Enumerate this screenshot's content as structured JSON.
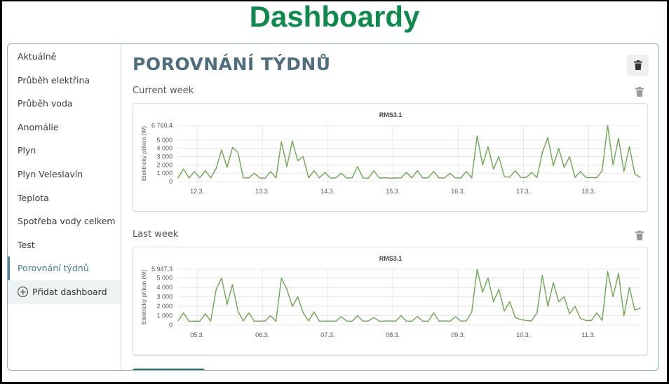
{
  "app_title": "Dashboardy",
  "sidebar": {
    "items": [
      {
        "label": "Aktuálně"
      },
      {
        "label": "Průběh elektřina"
      },
      {
        "label": "Průběh voda"
      },
      {
        "label": "Anomálie"
      },
      {
        "label": "Plyn"
      },
      {
        "label": "Plyn Veleslavín"
      },
      {
        "label": "Teplota"
      },
      {
        "label": "Spotřeba vody celkem"
      },
      {
        "label": "Test"
      },
      {
        "label": "Porovnání týdnů",
        "active": true
      }
    ],
    "add_label": "Přidat dashboard"
  },
  "main": {
    "title": "POROVNÁNÍ TÝDNŮ",
    "delete_icon": "trash-icon",
    "sections": [
      {
        "label": "Current week"
      },
      {
        "label": "Last week"
      }
    ]
  },
  "colors": {
    "brand": "#0d8a4c",
    "accent": "#4e6e7e",
    "series": "#6aa84f"
  },
  "chart_data": [
    {
      "type": "line",
      "title": "RMS3.1",
      "ylabel": "Elektrický příkon (W)",
      "ylim": [
        0,
        6760.4
      ],
      "ymax_label": "6 760,4",
      "yticks": [
        {
          "v": 0,
          "label": "0"
        },
        {
          "v": 1000,
          "label": "1 000"
        },
        {
          "v": 2000,
          "label": "2 000"
        },
        {
          "v": 3000,
          "label": "3 000"
        },
        {
          "v": 4000,
          "label": "4 000"
        },
        {
          "v": 5000,
          "label": "5 000"
        }
      ],
      "xticks": [
        "12.3.",
        "13.3.",
        "14.3.",
        "15.3.",
        "16.3.",
        "17.3.",
        "18.3."
      ],
      "x_start": "11.3. 17:00",
      "x_step": "2 h",
      "grid": true,
      "values": [
        450,
        1500,
        420,
        1200,
        450,
        1300,
        430,
        1600,
        3800,
        1700,
        4100,
        3500,
        450,
        420,
        1000,
        430,
        400,
        1200,
        420,
        4800,
        1800,
        4900,
        2500,
        3000,
        450,
        1300,
        430,
        1100,
        420,
        430,
        1000,
        420,
        450,
        1800,
        430,
        400,
        1300,
        420,
        450,
        400,
        420,
        430,
        1100,
        420,
        1300,
        420,
        450,
        1200,
        430,
        420,
        1000,
        430,
        420,
        1200,
        430,
        5500,
        2000,
        4200,
        1500,
        3000,
        600,
        500,
        1300,
        500,
        480,
        1100,
        470,
        3500,
        5300,
        1900,
        4000,
        1700,
        3000,
        500,
        1200,
        480,
        470,
        450,
        1300,
        6760,
        2000,
        5200,
        1200,
        4200,
        900,
        500
      ]
    },
    {
      "type": "line",
      "title": "RMS3.1",
      "ylabel": "Elektrický příkon (W)",
      "ylim": [
        0,
        5947.3
      ],
      "ymax_label": "5 947,3",
      "yticks": [
        {
          "v": 0,
          "label": "0"
        },
        {
          "v": 1000,
          "label": "1 000"
        },
        {
          "v": 2000,
          "label": "2 000"
        },
        {
          "v": 3000,
          "label": "3 000"
        },
        {
          "v": 4000,
          "label": "4 000"
        },
        {
          "v": 5000,
          "label": "5 000"
        }
      ],
      "xticks": [
        "05.3.",
        "06.3.",
        "07.3.",
        "08.3.",
        "09.3.",
        "10.3.",
        "11.3."
      ],
      "x_start": "4.3. 17:00",
      "x_step": "2 h",
      "grid": true,
      "values": [
        450,
        1300,
        420,
        430,
        420,
        1200,
        430,
        3800,
        5000,
        2200,
        4300,
        1500,
        450,
        1300,
        420,
        430,
        430,
        1000,
        420,
        5000,
        3800,
        2000,
        3000,
        1300,
        450,
        1400,
        420,
        430,
        430,
        420,
        900,
        430,
        420,
        1000,
        420,
        450,
        800,
        420,
        430,
        450,
        420,
        1000,
        430,
        420,
        900,
        430,
        420,
        1300,
        430,
        450,
        420,
        900,
        430,
        450,
        1400,
        5900,
        3500,
        5000,
        2500,
        3800,
        1500,
        2500,
        800,
        600,
        500,
        450,
        1300,
        5300,
        2000,
        4500,
        2500,
        3000,
        1200,
        2000,
        700,
        500,
        480,
        1300,
        500,
        5700,
        3000,
        5500,
        1000,
        4000,
        1600,
        1800
      ]
    }
  ]
}
